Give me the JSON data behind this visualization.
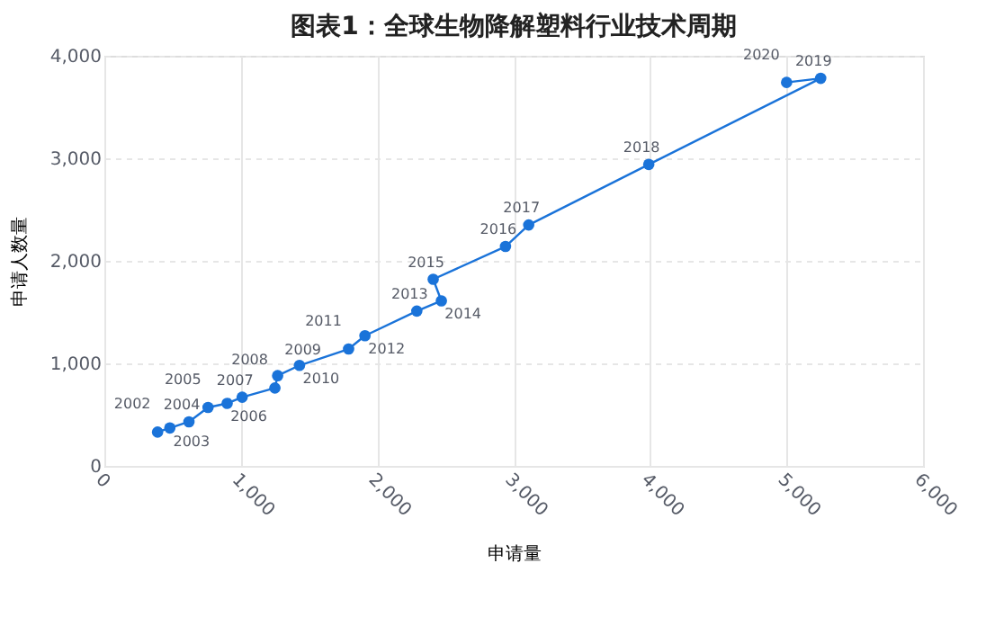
{
  "chart_data": {
    "type": "line",
    "title": "图表1：全球生物降解塑料行业技术周期",
    "xlabel": "申请量",
    "ylabel": "申请人数量",
    "x": [
      390,
      480,
      620,
      760,
      900,
      1010,
      1250,
      1270,
      1430,
      1790,
      1910,
      2290,
      2470,
      2410,
      2940,
      3110,
      3990,
      5250,
      5000
    ],
    "series": [
      {
        "color": "#1a73d9",
        "values": [
          330,
          370,
          430,
          570,
          610,
          670,
          760,
          880,
          980,
          1140,
          1270,
          1510,
          1610,
          1820,
          2140,
          2350,
          2940,
          3780,
          3740
        ]
      }
    ],
    "annotations": [
      {
        "text": "2002",
        "x": 390,
        "y": 330
      },
      {
        "text": "2003",
        "x": 480,
        "y": 370
      },
      {
        "text": "2004",
        "x": 620,
        "y": 430
      },
      {
        "text": "2005",
        "x": 760,
        "y": 570
      },
      {
        "text": "2006",
        "x": 900,
        "y": 610
      },
      {
        "text": "2007",
        "x": 1010,
        "y": 670
      },
      {
        "text": "2008",
        "x": 1250,
        "y": 760
      },
      {
        "text": "2009",
        "x": 1270,
        "y": 880
      },
      {
        "text": "2010",
        "x": 1430,
        "y": 980
      },
      {
        "text": "2011",
        "x": 1790,
        "y": 1140
      },
      {
        "text": "2012",
        "x": 1910,
        "y": 1270
      },
      {
        "text": "2013",
        "x": 2290,
        "y": 1510
      },
      {
        "text": "2014",
        "x": 2470,
        "y": 1610
      },
      {
        "text": "2015",
        "x": 2410,
        "y": 1820
      },
      {
        "text": "2016",
        "x": 2940,
        "y": 2140
      },
      {
        "text": "2017",
        "x": 3110,
        "y": 2350
      },
      {
        "text": "2018",
        "x": 3990,
        "y": 2940
      },
      {
        "text": "2019",
        "x": 5250,
        "y": 3780
      },
      {
        "text": "2020",
        "x": 5000,
        "y": 3740
      }
    ],
    "xlim": [
      0,
      6000
    ],
    "xticks": [
      {
        "value": 0,
        "label": "0"
      },
      {
        "value": 1000,
        "label": "1,000"
      },
      {
        "value": 2000,
        "label": "2,000"
      },
      {
        "value": 3000,
        "label": "3,000"
      },
      {
        "value": 4000,
        "label": "4,000"
      },
      {
        "value": 5000,
        "label": "5,000"
      },
      {
        "value": 6000,
        "label": "6,000"
      }
    ],
    "ylim": [
      0,
      4000
    ],
    "yticks": [
      {
        "value": 0,
        "label": "0"
      },
      {
        "value": 1000,
        "label": "1,000"
      },
      {
        "value": 2000,
        "label": "2,000"
      },
      {
        "value": 3000,
        "label": "3,000"
      },
      {
        "value": 4000,
        "label": "4,000"
      }
    ],
    "grid": true,
    "marker": "circle",
    "line_style": "solid"
  }
}
